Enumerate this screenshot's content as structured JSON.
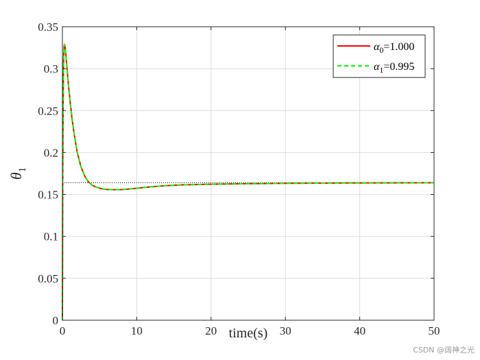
{
  "chart_data": {
    "type": "line",
    "xlabel": "time(s)",
    "ylabel": {
      "base": "θ",
      "sub": "1"
    },
    "xlim": [
      0,
      50
    ],
    "ylim": [
      0,
      0.35
    ],
    "xticks": [
      0,
      10,
      20,
      30,
      40,
      50
    ],
    "xtick_labels": [
      "0",
      "10",
      "20",
      "30",
      "40",
      "50"
    ],
    "yticks": [
      0,
      0.05,
      0.1,
      0.15,
      0.2,
      0.25,
      0.3,
      0.35
    ],
    "ytick_labels": [
      "0",
      "0.05",
      "0.1",
      "0.15",
      "0.2",
      "0.25",
      "0.3",
      "0.35"
    ],
    "grid": true,
    "legend_position": "top-right",
    "reference_line": {
      "y": 0.164,
      "style": "dotted",
      "color": "#000000"
    },
    "series": [
      {
        "name": "α0=1.000",
        "legend": {
          "base": "α",
          "sub": "0",
          "rest": "=1.000"
        },
        "color": "#ff0000",
        "style": "solid",
        "x": [
          0,
          0.02,
          0.05,
          0.1,
          0.15,
          0.2,
          0.25,
          0.3,
          0.35,
          0.4,
          0.5,
          0.6,
          0.8,
          1.0,
          1.3,
          1.6,
          2.0,
          2.5,
          3.0,
          3.5,
          4.0,
          4.5,
          5.0,
          5.5,
          6.0,
          7.0,
          8.0,
          9.0,
          10,
          11,
          12,
          14,
          16,
          18,
          20,
          25,
          30,
          35,
          40,
          45,
          50
        ],
        "y": [
          0,
          0.08,
          0.18,
          0.26,
          0.305,
          0.322,
          0.328,
          0.329,
          0.327,
          0.323,
          0.313,
          0.302,
          0.282,
          0.264,
          0.24,
          0.221,
          0.2,
          0.183,
          0.172,
          0.165,
          0.161,
          0.159,
          0.1575,
          0.1565,
          0.156,
          0.1557,
          0.1558,
          0.1565,
          0.1574,
          0.1583,
          0.1592,
          0.1605,
          0.1614,
          0.1618,
          0.1622,
          0.1628,
          0.1633,
          0.1636,
          0.1638,
          0.1639,
          0.164
        ]
      },
      {
        "name": "α1=0.995",
        "legend": {
          "base": "α",
          "sub": "1",
          "rest": "=0.995"
        },
        "color": "#00ff00",
        "style": "dashed",
        "x": [
          0,
          0.02,
          0.05,
          0.1,
          0.15,
          0.2,
          0.25,
          0.3,
          0.35,
          0.4,
          0.5,
          0.6,
          0.8,
          1.0,
          1.3,
          1.6,
          2.0,
          2.5,
          3.0,
          3.5,
          4.0,
          4.5,
          5.0,
          5.5,
          6.0,
          7.0,
          8.0,
          9.0,
          10,
          11,
          12,
          14,
          16,
          18,
          20,
          25,
          30,
          35,
          40,
          45,
          50
        ],
        "y": [
          0,
          0.08,
          0.18,
          0.26,
          0.305,
          0.322,
          0.328,
          0.329,
          0.327,
          0.323,
          0.313,
          0.302,
          0.282,
          0.264,
          0.24,
          0.221,
          0.2,
          0.183,
          0.172,
          0.165,
          0.161,
          0.159,
          0.1575,
          0.1565,
          0.156,
          0.1557,
          0.1558,
          0.1565,
          0.1574,
          0.1583,
          0.1592,
          0.1605,
          0.1614,
          0.1618,
          0.1622,
          0.1628,
          0.1633,
          0.1636,
          0.1638,
          0.1639,
          0.164
        ]
      }
    ]
  },
  "watermark": "CSDN @阔神之光"
}
